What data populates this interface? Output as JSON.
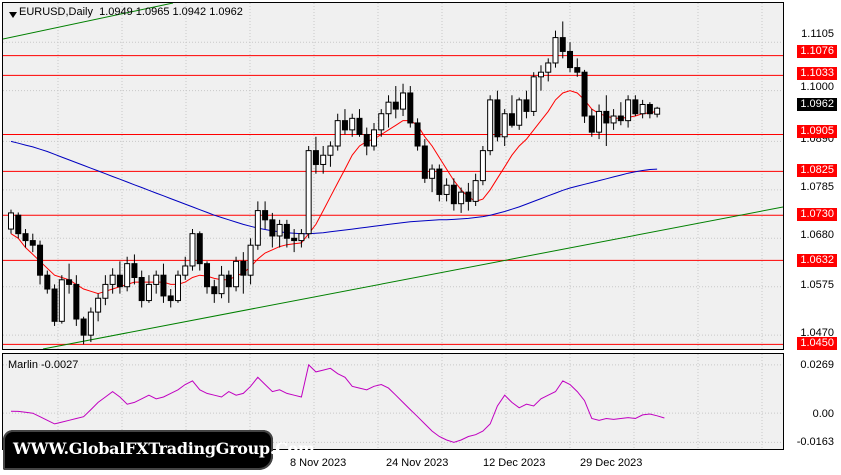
{
  "header": {
    "symbol": "EURUSD,Daily",
    "ohlc": "1.0949 1.0965 1.0942 1.0962",
    "menu_arrow_icon": "triangle-down-icon"
  },
  "price_axis": {
    "ticks": [
      "1.1105",
      "1.1000",
      "1.0890",
      "1.0785",
      "1.0680",
      "1.0575",
      "1.0470"
    ],
    "current_price": "1.0962"
  },
  "levels": [
    {
      "label": "1.1076",
      "value": 1.1076
    },
    {
      "label": "1.1033",
      "value": 1.1033
    },
    {
      "label": "1.0905",
      "value": 1.0905
    },
    {
      "label": "1.0825",
      "value": 1.0825
    },
    {
      "label": "1.0730",
      "value": 1.073
    },
    {
      "label": "1.0632",
      "value": 1.0632
    },
    {
      "label": "1.0450",
      "value": 1.045
    }
  ],
  "date_axis": [
    "8 Nov 2023",
    "24 Nov 2023",
    "12 Dec 2023",
    "29 Dec 2023"
  ],
  "oscillator": {
    "label": "Marlin -0.0027",
    "ticks": [
      "0.0269",
      "0.00",
      "-0.0163"
    ]
  },
  "watermark": "WWW.GlobalFXTradingGroup.Com",
  "colors": {
    "level_line": "#ff0000",
    "trend_line": "#008000",
    "fast_ma": "#ff0000",
    "slow_ma": "#0000c0",
    "oscillator_line": "#c000c0",
    "grid": "#c8c8c8"
  },
  "chart_data": {
    "type": "candlestick",
    "title": "EURUSD,Daily",
    "ylim": [
      1.044,
      1.119
    ],
    "candles": [
      [
        1.07,
        1.0742,
        1.069,
        1.0735
      ],
      [
        1.073,
        1.0736,
        1.068,
        1.069
      ],
      [
        1.069,
        1.07,
        1.066,
        1.0675
      ],
      [
        1.0675,
        1.069,
        1.065,
        1.0665
      ],
      [
        1.0665,
        1.0675,
        1.058,
        1.06
      ],
      [
        1.06,
        1.061,
        1.056,
        1.057
      ],
      [
        1.057,
        1.058,
        1.049,
        1.05
      ],
      [
        1.05,
        1.06,
        1.0495,
        1.059
      ],
      [
        1.059,
        1.0625,
        1.056,
        1.058
      ],
      [
        1.058,
        1.06,
        1.049,
        1.0505
      ],
      [
        1.0505,
        1.051,
        1.045,
        1.047
      ],
      [
        1.047,
        1.053,
        1.0455,
        1.052
      ],
      [
        1.052,
        1.056,
        1.05,
        1.055
      ],
      [
        1.055,
        1.06,
        1.0535,
        1.058
      ],
      [
        1.058,
        1.0615,
        1.056,
        1.06
      ],
      [
        1.06,
        1.063,
        1.056,
        1.0575
      ],
      [
        1.0575,
        1.064,
        1.0565,
        1.0625
      ],
      [
        1.0625,
        1.0645,
        1.058,
        1.0595
      ],
      [
        1.0595,
        1.061,
        1.053,
        1.0545
      ],
      [
        1.0545,
        1.06,
        1.054,
        1.058
      ],
      [
        1.058,
        1.061,
        1.056,
        1.06
      ],
      [
        1.06,
        1.0625,
        1.054,
        1.0555
      ],
      [
        1.0555,
        1.057,
        1.053,
        1.0545
      ],
      [
        1.0545,
        1.061,
        1.054,
        1.06
      ],
      [
        1.06,
        1.064,
        1.059,
        1.062
      ],
      [
        1.062,
        1.07,
        1.061,
        1.069
      ],
      [
        1.069,
        1.0695,
        1.061,
        1.0625
      ],
      [
        1.0625,
        1.063,
        1.056,
        1.0575
      ],
      [
        1.0575,
        1.059,
        1.054,
        1.056
      ],
      [
        1.056,
        1.062,
        1.055,
        1.06
      ],
      [
        1.06,
        1.061,
        1.054,
        1.0575
      ],
      [
        1.0575,
        1.064,
        1.0565,
        1.063
      ],
      [
        1.063,
        1.065,
        1.056,
        1.06
      ],
      [
        1.06,
        1.068,
        1.058,
        1.0665
      ],
      [
        1.0665,
        1.076,
        1.0655,
        1.074
      ],
      [
        1.074,
        1.076,
        1.07,
        1.072
      ],
      [
        1.072,
        1.0735,
        1.066,
        1.0685
      ],
      [
        1.0685,
        1.072,
        1.066,
        1.071
      ],
      [
        1.071,
        1.072,
        1.066,
        1.068
      ],
      [
        1.068,
        1.07,
        1.065,
        1.0675
      ],
      [
        1.0675,
        1.07,
        1.066,
        1.069
      ],
      [
        1.069,
        1.088,
        1.068,
        1.087
      ],
      [
        1.087,
        1.09,
        1.082,
        1.084
      ],
      [
        1.084,
        1.088,
        1.082,
        1.086
      ],
      [
        1.086,
        1.089,
        1.0835,
        1.088
      ],
      [
        1.088,
        1.095,
        1.087,
        1.0935
      ],
      [
        1.0935,
        1.096,
        1.0905,
        1.0915
      ],
      [
        1.0915,
        1.095,
        1.09,
        1.094
      ],
      [
        1.094,
        1.096,
        1.09,
        1.0905
      ],
      [
        1.0905,
        1.092,
        1.086,
        1.088
      ],
      [
        1.088,
        1.093,
        1.087,
        1.0915
      ],
      [
        1.0915,
        1.096,
        1.09,
        1.095
      ],
      [
        1.095,
        1.099,
        1.092,
        1.0975
      ],
      [
        1.0975,
        1.101,
        1.094,
        1.096
      ],
      [
        1.096,
        1.1015,
        1.0945,
        1.0995
      ],
      [
        1.0995,
        1.101,
        1.092,
        1.093
      ],
      [
        1.093,
        1.094,
        1.087,
        1.088
      ],
      [
        1.088,
        1.0895,
        1.08,
        1.081
      ],
      [
        1.081,
        1.084,
        1.078,
        1.083
      ],
      [
        1.083,
        1.084,
        1.076,
        1.0775
      ],
      [
        1.0775,
        1.081,
        1.076,
        1.0795
      ],
      [
        1.0795,
        1.081,
        1.074,
        1.0755
      ],
      [
        1.0755,
        1.079,
        1.0735,
        1.078
      ],
      [
        1.078,
        1.08,
        1.074,
        1.076
      ],
      [
        1.076,
        1.082,
        1.075,
        1.0805
      ],
      [
        1.0805,
        1.088,
        1.0795,
        1.087
      ],
      [
        1.087,
        1.099,
        1.086,
        1.098
      ],
      [
        1.098,
        1.1,
        1.089,
        1.09
      ],
      [
        1.09,
        1.096,
        1.088,
        1.095
      ],
      [
        1.095,
        1.099,
        1.092,
        1.0925
      ],
      [
        1.0925,
        1.0985,
        1.0915,
        1.098
      ],
      [
        1.098,
        1.1,
        1.094,
        1.0955
      ],
      [
        1.0955,
        1.104,
        1.0945,
        1.103
      ],
      [
        1.103,
        1.1055,
        1.1,
        1.104
      ],
      [
        1.104,
        1.107,
        1.102,
        1.106
      ],
      [
        1.106,
        1.113,
        1.105,
        1.1115
      ],
      [
        1.1115,
        1.115,
        1.107,
        1.1085
      ],
      [
        1.1085,
        1.1105,
        1.104,
        1.105
      ],
      [
        1.105,
        1.107,
        1.103,
        1.104
      ],
      [
        1.104,
        1.1045,
        1.093,
        1.0945
      ],
      [
        1.0945,
        1.096,
        1.09,
        1.091
      ],
      [
        1.091,
        1.097,
        1.0895,
        1.0955
      ],
      [
        1.0955,
        1.099,
        1.088,
        1.093
      ],
      [
        1.093,
        1.096,
        1.0915,
        1.0945
      ],
      [
        1.0945,
        1.0975,
        1.0925,
        1.0935
      ],
      [
        1.0935,
        1.099,
        1.092,
        1.098
      ],
      [
        1.098,
        1.099,
        1.0945,
        1.095
      ],
      [
        1.095,
        1.098,
        1.094,
        1.097
      ],
      [
        1.097,
        1.0975,
        1.094,
        1.095
      ],
      [
        1.0949,
        1.0965,
        1.0942,
        1.0962
      ]
    ],
    "fast_ma": [
      1.069,
      1.068,
      1.066,
      1.0645,
      1.063,
      1.0615,
      1.06,
      1.0595,
      1.059,
      1.058,
      1.057,
      1.0565,
      1.056,
      1.0565,
      1.057,
      1.0575,
      1.058,
      1.0585,
      1.0585,
      1.0585,
      1.0585,
      1.0585,
      1.058,
      1.058,
      1.0585,
      1.0595,
      1.06,
      1.0598,
      1.0593,
      1.059,
      1.059,
      1.0598,
      1.0605,
      1.0618,
      1.0635,
      1.0648,
      1.0655,
      1.0662,
      1.0666,
      1.0668,
      1.067,
      1.069,
      1.071,
      1.074,
      1.077,
      1.08,
      1.083,
      1.086,
      1.088,
      1.089,
      1.0895,
      1.0905,
      1.0915,
      1.0925,
      1.0935,
      1.0935,
      1.0925,
      1.09,
      1.088,
      1.0855,
      1.083,
      1.0805,
      1.0785,
      1.077,
      1.076,
      1.0765,
      1.0785,
      1.081,
      1.0835,
      1.086,
      1.088,
      1.0895,
      1.0915,
      1.0935,
      1.0955,
      1.098,
      1.0995,
      1.1,
      1.0995,
      1.098,
      1.096,
      1.095,
      1.0945,
      1.094,
      1.094,
      1.0942,
      1.0945,
      1.095,
      1.0952,
      1.0955
    ],
    "slow_ma": [
      1.089,
      1.0886,
      1.0882,
      1.0878,
      1.0873,
      1.0868,
      1.0862,
      1.0856,
      1.085,
      1.0844,
      1.0838,
      1.0832,
      1.0826,
      1.082,
      1.0814,
      1.0808,
      1.0802,
      1.0796,
      1.079,
      1.0784,
      1.0778,
      1.0772,
      1.0766,
      1.076,
      1.0754,
      1.0748,
      1.0742,
      1.0736,
      1.073,
      1.0725,
      1.072,
      1.0715,
      1.071,
      1.0706,
      1.0702,
      1.0699,
      1.0696,
      1.0694,
      1.0692,
      1.0691,
      1.069,
      1.069,
      1.0691,
      1.0692,
      1.0694,
      1.0696,
      1.0698,
      1.07,
      1.0702,
      1.0704,
      1.0706,
      1.0708,
      1.071,
      1.0712,
      1.0714,
      1.0716,
      1.0717,
      1.0718,
      1.0719,
      1.072,
      1.072,
      1.0721,
      1.0722,
      1.0723,
      1.0725,
      1.0727,
      1.073,
      1.0734,
      1.0738,
      1.0743,
      1.0748,
      1.0754,
      1.076,
      1.0766,
      1.0772,
      1.0778,
      1.0784,
      1.0789,
      1.0793,
      1.0797,
      1.0801,
      1.0805,
      1.0809,
      1.0813,
      1.0817,
      1.0821,
      1.0824,
      1.0827,
      1.0829,
      1.083
    ],
    "oscillator": [
      0.0011,
      0.001,
      0.0005,
      0.0,
      -0.002,
      -0.004,
      -0.006,
      -0.005,
      -0.004,
      -0.003,
      -0.002,
      0.002,
      0.006,
      0.009,
      0.012,
      0.009,
      0.005,
      0.006,
      0.008,
      0.01,
      0.008,
      0.009,
      0.011,
      0.013,
      0.016,
      0.018,
      0.013,
      0.011,
      0.01,
      0.009,
      0.012,
      0.01,
      0.011,
      0.015,
      0.02,
      0.016,
      0.012,
      0.013,
      0.011,
      0.01,
      0.009,
      0.0269,
      0.023,
      0.024,
      0.025,
      0.022,
      0.02,
      0.015,
      0.014,
      0.013,
      0.015,
      0.016,
      0.014,
      0.01,
      0.006,
      0.002,
      -0.002,
      -0.006,
      -0.01,
      -0.013,
      -0.015,
      -0.0163,
      -0.015,
      -0.013,
      -0.012,
      -0.01,
      -0.006,
      0.004,
      0.01,
      0.006,
      0.003,
      0.005,
      0.004,
      0.008,
      0.01,
      0.012,
      0.018,
      0.016,
      0.012,
      0.007,
      -0.003,
      -0.004,
      -0.003,
      -0.0035,
      -0.003,
      -0.0025,
      -0.003,
      -0.001,
      -0.0005,
      -0.0015,
      -0.0027
    ],
    "osc_ylim": [
      -0.02,
      0.033
    ]
  }
}
